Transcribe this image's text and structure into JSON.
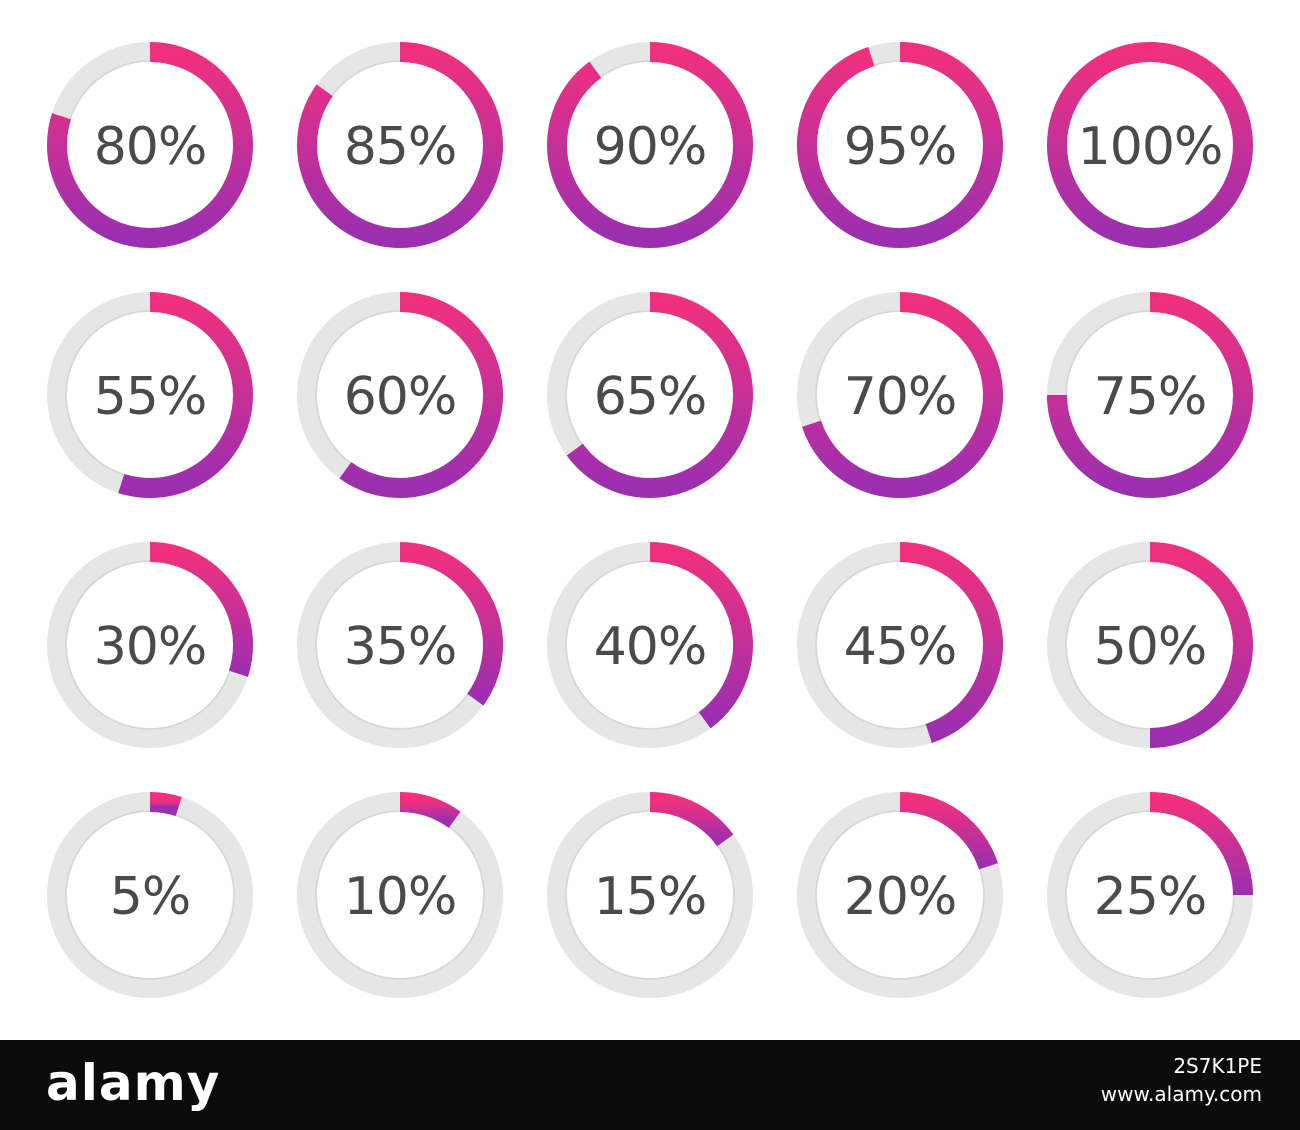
{
  "chart_data": {
    "type": "progress-rings",
    "title": "",
    "colors": {
      "track": "#e6e6e6",
      "track_inner": "#d9d9d9",
      "gradient_start": "#f0307e",
      "gradient_end": "#9b2fb0",
      "label": "#4a4a4a"
    },
    "rows": [
      [
        {
          "label": "80%",
          "value": 80
        },
        {
          "label": "85%",
          "value": 85
        },
        {
          "label": "90%",
          "value": 90
        },
        {
          "label": "95%",
          "value": 95
        },
        {
          "label": "100%",
          "value": 100
        }
      ],
      [
        {
          "label": "55%",
          "value": 55
        },
        {
          "label": "60%",
          "value": 60
        },
        {
          "label": "65%",
          "value": 65
        },
        {
          "label": "70%",
          "value": 70
        },
        {
          "label": "75%",
          "value": 75
        }
      ],
      [
        {
          "label": "30%",
          "value": 30
        },
        {
          "label": "35%",
          "value": 35
        },
        {
          "label": "40%",
          "value": 40
        },
        {
          "label": "45%",
          "value": 45
        },
        {
          "label": "50%",
          "value": 50
        }
      ],
      [
        {
          "label": "5%",
          "value": 5
        },
        {
          "label": "10%",
          "value": 10
        },
        {
          "label": "15%",
          "value": 15
        },
        {
          "label": "20%",
          "value": 20
        },
        {
          "label": "25%",
          "value": 25
        }
      ]
    ]
  },
  "watermark": {
    "logo": "alamy",
    "image_id": "2S7K1PE",
    "site": "www.alamy.com"
  }
}
